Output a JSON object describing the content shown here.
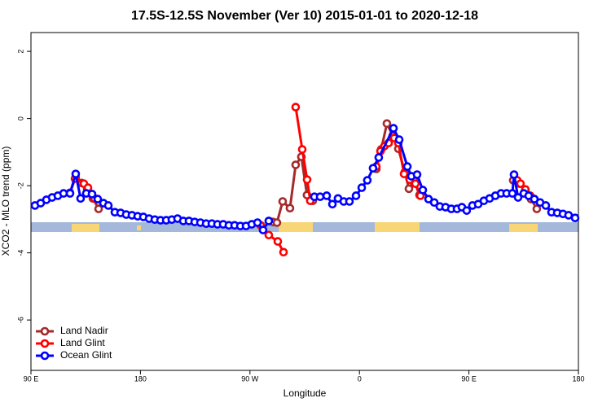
{
  "chart_data": {
    "type": "line",
    "title": "17.5S-12.5S November (Ver 10)   2015-01-01 to 2020-12-18",
    "xlabel": "Longitude",
    "ylabel": "XCO2 - MLO trend (ppm)",
    "xlim": [
      90,
      540
    ],
    "xticks": [
      {
        "value": 90,
        "label": "90 E"
      },
      {
        "value": 180,
        "label": "180"
      },
      {
        "value": 270,
        "label": "90 W"
      },
      {
        "value": 360,
        "label": "0"
      },
      {
        "value": 450,
        "label": "90 E"
      },
      {
        "value": 540,
        "label": "180"
      }
    ],
    "ylim": [
      -7.5,
      2.56
    ],
    "yticks": [
      2,
      0,
      -2,
      -4,
      -6
    ],
    "legend": "bottom-left",
    "series": [
      {
        "name": "Land Nadir",
        "color": "#a52a2a",
        "x": [
          122.1,
          126.8,
          131.5,
          136.2,
          140.9,
          145.6,
          null,
          288.9,
          292.2,
          296.9,
          302.9,
          307.6,
          312.3,
          316.9,
          321.7,
          null,
          373.9,
          377.9,
          382.6,
          387.3,
          392,
          397.3,
          400.7,
          404.7,
          409.4,
          null,
          486.4,
          491.8,
          496.4,
          501.1,
          505.8
        ],
        "values": [
          -2.21,
          -1.75,
          -1.92,
          -2.09,
          -2.38,
          -2.69,
          null,
          -3.08,
          -3.1,
          -2.47,
          -2.67,
          -1.38,
          -1.14,
          -2.28,
          -2.45,
          null,
          -1.5,
          -0.92,
          -0.15,
          -0.51,
          -0.9,
          -1.6,
          -2.09,
          -1.84,
          -2.28,
          null,
          -1.84,
          -1.94,
          -2.13,
          -2.4,
          -2.69
        ]
      },
      {
        "name": "Land Glint",
        "color": "#ff0000",
        "x": [
          126.2,
          133.5,
          136.9,
          142.2,
          null,
          278.8,
          285.5,
          292.9,
          297.6,
          null,
          307.6,
          313,
          317,
          319.6,
          null,
          373.9,
          377.3,
          380.6,
          384,
          388.6,
          392,
          396.7,
          401.4,
          406,
          410.1,
          null,
          489.7,
          492.4,
          496.4,
          500.4,
          503.8
        ],
        "values": [
          -1.79,
          -1.94,
          -2.06,
          -2.38,
          null,
          -3.18,
          -3.47,
          -3.66,
          -3.98,
          null,
          0.34,
          -0.92,
          -1.82,
          -2.45,
          null,
          -1.43,
          -0.97,
          -0.82,
          -0.73,
          -0.58,
          -0.73,
          -1.65,
          -1.82,
          -1.94,
          -2.3,
          null,
          -1.84,
          -1.94,
          -2.11,
          -2.3,
          -2.4
        ]
      },
      {
        "name": "Ocean Glint",
        "color": "#0000ff",
        "x": [
          93.3,
          98,
          102.7,
          107.4,
          112.1,
          116.8,
          122.1,
          126.8,
          130.8,
          135.5,
          140.2,
          144.9,
          149.6,
          153.6,
          159,
          163.7,
          168.3,
          173,
          177.7,
          182.4,
          187.1,
          191.8,
          196.5,
          201.2,
          205.8,
          210.5,
          215.2,
          219.9,
          224.6,
          229.3,
          234,
          238.7,
          243.3,
          248,
          252.7,
          257.4,
          262.1,
          266.8,
          271.5,
          276.2,
          280.8,
          285.5,
          null,
          323,
          327.7,
          333.1,
          337.8,
          342.4,
          347.1,
          351.8,
          357.2,
          361.9,
          366.5,
          371.2,
          375.9,
          388,
          392.7,
          399.4,
          402.7,
          407.4,
          412.1,
          416.8,
          421.5,
          426.1,
          430.8,
          435.5,
          440.2,
          444.2,
          448.2,
          452.9,
          457.6,
          462.3,
          467,
          471.7,
          476.4,
          481,
          485.7,
          487.1,
          490.4,
          495.1,
          499.1,
          503.8,
          508.5,
          513.2,
          517.9,
          522.6,
          527.3,
          531.9,
          537.3
        ],
        "values": [
          -2.59,
          -2.52,
          -2.42,
          -2.35,
          -2.3,
          -2.23,
          -2.23,
          -1.65,
          -2.38,
          -2.23,
          -2.25,
          -2.4,
          -2.52,
          -2.59,
          -2.79,
          -2.81,
          -2.86,
          -2.88,
          -2.91,
          -2.93,
          -2.98,
          -3.01,
          -3.03,
          -3.03,
          -3.01,
          -2.98,
          -3.05,
          -3.05,
          -3.08,
          -3.1,
          -3.13,
          -3.13,
          -3.15,
          -3.15,
          -3.18,
          -3.18,
          -3.2,
          -3.2,
          -3.15,
          -3.1,
          -3.32,
          -3.05,
          null,
          -2.33,
          -2.33,
          -2.3,
          -2.55,
          -2.38,
          -2.47,
          -2.47,
          -2.3,
          -2.06,
          -1.84,
          -1.48,
          -1.16,
          -0.29,
          -0.63,
          -1.43,
          -1.72,
          -1.67,
          -2.13,
          -2.4,
          -2.5,
          -2.62,
          -2.64,
          -2.69,
          -2.69,
          -2.64,
          -2.74,
          -2.59,
          -2.55,
          -2.45,
          -2.38,
          -2.3,
          -2.23,
          -2.23,
          -2.23,
          -1.67,
          -2.35,
          -2.23,
          -2.3,
          -2.4,
          -2.5,
          -2.59,
          -2.79,
          -2.81,
          -2.84,
          -2.88,
          -2.96
        ]
      }
    ]
  }
}
